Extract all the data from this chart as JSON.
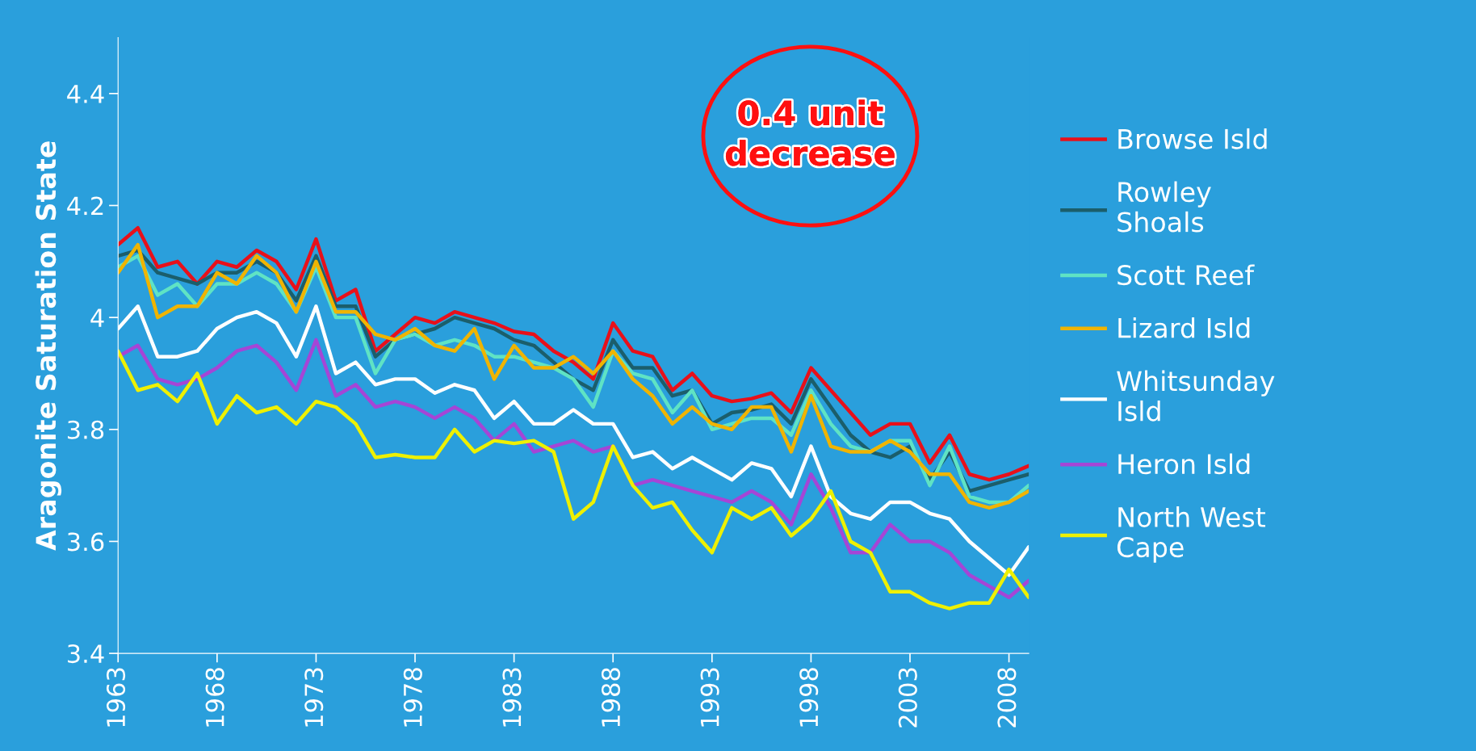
{
  "chart_data": {
    "type": "line",
    "ylabel": "Aragonite Saturation State",
    "x": [
      1963,
      1964,
      1965,
      1966,
      1967,
      1968,
      1969,
      1970,
      1971,
      1972,
      1973,
      1974,
      1975,
      1976,
      1977,
      1978,
      1979,
      1980,
      1981,
      1982,
      1983,
      1984,
      1985,
      1986,
      1987,
      1988,
      1989,
      1990,
      1991,
      1992,
      1993,
      1994,
      1995,
      1996,
      1997,
      1998,
      1999,
      2000,
      2001,
      2002,
      2003,
      2004,
      2005,
      2006,
      2007,
      2008,
      2009
    ],
    "xlim": [
      1963,
      2009
    ],
    "xticks": [
      1963,
      1968,
      1973,
      1978,
      1983,
      1988,
      1993,
      1998,
      2003,
      2008
    ],
    "ylim": [
      3.4,
      4.5
    ],
    "yticks": [
      3.4,
      3.6,
      3.8,
      4,
      4.2,
      4.4
    ],
    "grid": false,
    "legend": "right",
    "marker": "none",
    "line_style": "solid",
    "annotations": [
      {
        "text": "0.4 unit decrease"
      }
    ],
    "series": [
      {
        "name": "Browse Isld",
        "color": "#e8101a",
        "values": [
          4.13,
          4.16,
          4.09,
          4.1,
          4.06,
          4.1,
          4.09,
          4.12,
          4.1,
          4.05,
          4.14,
          4.03,
          4.05,
          3.94,
          3.97,
          4.0,
          3.99,
          4.01,
          4.0,
          3.99,
          3.975,
          3.97,
          3.94,
          3.92,
          3.89,
          3.99,
          3.94,
          3.93,
          3.87,
          3.9,
          3.86,
          3.85,
          3.855,
          3.865,
          3.83,
          3.91,
          3.87,
          3.83,
          3.79,
          3.81,
          3.81,
          3.74,
          3.79,
          3.72,
          3.71,
          3.72,
          3.735
        ]
      },
      {
        "name": "Rowley Shoals",
        "color": "#1b5e6b",
        "values": [
          4.11,
          4.12,
          4.08,
          4.07,
          4.06,
          4.08,
          4.08,
          4.1,
          4.08,
          4.03,
          4.11,
          4.02,
          4.02,
          3.93,
          3.96,
          3.97,
          3.98,
          4.0,
          3.99,
          3.98,
          3.96,
          3.95,
          3.92,
          3.89,
          3.87,
          3.96,
          3.91,
          3.91,
          3.86,
          3.87,
          3.81,
          3.83,
          3.835,
          3.845,
          3.81,
          3.89,
          3.84,
          3.79,
          3.76,
          3.75,
          3.77,
          3.71,
          3.76,
          3.69,
          3.7,
          3.71,
          3.72
        ]
      },
      {
        "name": "Scott Reef",
        "color": "#5fe3c4",
        "values": [
          4.09,
          4.11,
          4.04,
          4.06,
          4.02,
          4.06,
          4.06,
          4.08,
          4.06,
          4.01,
          4.09,
          4.0,
          4.0,
          3.9,
          3.96,
          3.97,
          3.95,
          3.96,
          3.95,
          3.93,
          3.93,
          3.92,
          3.91,
          3.89,
          3.84,
          3.94,
          3.9,
          3.89,
          3.83,
          3.87,
          3.8,
          3.81,
          3.82,
          3.82,
          3.79,
          3.87,
          3.81,
          3.77,
          3.76,
          3.78,
          3.78,
          3.7,
          3.77,
          3.68,
          3.67,
          3.67,
          3.7
        ]
      },
      {
        "name": "Lizard Isld",
        "color": "#f0b400",
        "values": [
          4.08,
          4.13,
          4.0,
          4.02,
          4.02,
          4.08,
          4.06,
          4.11,
          4.08,
          4.01,
          4.1,
          4.01,
          4.01,
          3.97,
          3.96,
          3.98,
          3.95,
          3.94,
          3.98,
          3.89,
          3.95,
          3.91,
          3.91,
          3.93,
          3.9,
          3.94,
          3.89,
          3.86,
          3.81,
          3.84,
          3.81,
          3.8,
          3.84,
          3.84,
          3.76,
          3.86,
          3.77,
          3.76,
          3.76,
          3.78,
          3.76,
          3.72,
          3.72,
          3.67,
          3.66,
          3.67,
          3.69
        ]
      },
      {
        "name": "Whitsunday Isld",
        "color": "#ffffff",
        "values": [
          3.98,
          4.02,
          3.93,
          3.93,
          3.94,
          3.98,
          4.0,
          4.01,
          3.99,
          3.93,
          4.02,
          3.9,
          3.92,
          3.88,
          3.89,
          3.89,
          3.865,
          3.88,
          3.87,
          3.82,
          3.85,
          3.81,
          3.81,
          3.835,
          3.81,
          3.81,
          3.75,
          3.76,
          3.73,
          3.75,
          3.73,
          3.71,
          3.74,
          3.73,
          3.68,
          3.77,
          3.68,
          3.65,
          3.64,
          3.67,
          3.67,
          3.65,
          3.64,
          3.6,
          3.57,
          3.54,
          3.59
        ]
      },
      {
        "name": "Heron Isld",
        "color": "#a545d6",
        "values": [
          3.93,
          3.95,
          3.89,
          3.88,
          3.89,
          3.91,
          3.94,
          3.95,
          3.92,
          3.87,
          3.96,
          3.86,
          3.88,
          3.84,
          3.85,
          3.84,
          3.82,
          3.84,
          3.82,
          3.78,
          3.81,
          3.76,
          3.77,
          3.78,
          3.76,
          3.77,
          3.7,
          3.71,
          3.7,
          3.69,
          3.68,
          3.67,
          3.69,
          3.67,
          3.63,
          3.72,
          3.66,
          3.58,
          3.58,
          3.63,
          3.6,
          3.6,
          3.58,
          3.54,
          3.52,
          3.5,
          3.53
        ]
      },
      {
        "name": "North West Cape",
        "color": "#eef000",
        "values": [
          3.94,
          3.87,
          3.88,
          3.85,
          3.9,
          3.81,
          3.86,
          3.83,
          3.84,
          3.81,
          3.85,
          3.84,
          3.81,
          3.75,
          3.755,
          3.75,
          3.75,
          3.8,
          3.76,
          3.78,
          3.775,
          3.78,
          3.76,
          3.64,
          3.67,
          3.77,
          3.7,
          3.66,
          3.67,
          3.62,
          3.58,
          3.66,
          3.64,
          3.66,
          3.61,
          3.64,
          3.69,
          3.6,
          3.58,
          3.51,
          3.51,
          3.49,
          3.48,
          3.49,
          3.49,
          3.55,
          3.5
        ]
      }
    ]
  }
}
